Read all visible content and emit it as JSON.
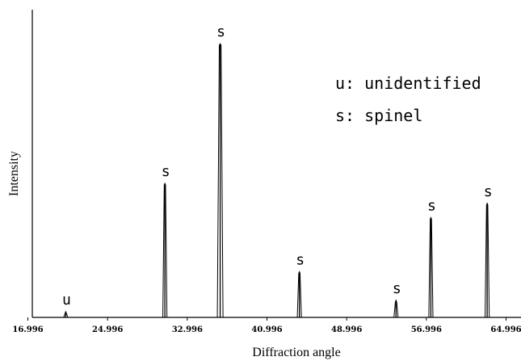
{
  "chart_data": {
    "type": "line",
    "title": "",
    "xlabel": "Diffraction angle",
    "ylabel": "Intensity",
    "xlim": [
      16.996,
      66.5
    ],
    "ylim": [
      0,
      100
    ],
    "x_ticks": [
      16.996,
      24.996,
      32.996,
      40.996,
      48.996,
      56.996,
      64.996
    ],
    "x_tick_labels": [
      "16.996",
      "24.996",
      "32.996",
      "40.996",
      "48.996",
      "56.996",
      "64.996"
    ],
    "grid": false,
    "peaks": [
      {
        "x": 20.8,
        "intensity": 2.0,
        "label": "u"
      },
      {
        "x": 30.75,
        "intensity": 47.0,
        "label": "s"
      },
      {
        "x": 36.3,
        "intensity": 96.0,
        "label": "s"
      },
      {
        "x": 44.25,
        "intensity": 16.0,
        "label": "s"
      },
      {
        "x": 53.95,
        "intensity": 6.0,
        "label": "s"
      },
      {
        "x": 57.45,
        "intensity": 35.0,
        "label": "s"
      },
      {
        "x": 63.1,
        "intensity": 40.0,
        "label": "s"
      }
    ],
    "legend": [
      {
        "symbol": "u",
        "text": "u: unidentified"
      },
      {
        "symbol": "s",
        "text": "s: spinel"
      }
    ],
    "legend_position": "top-right"
  }
}
